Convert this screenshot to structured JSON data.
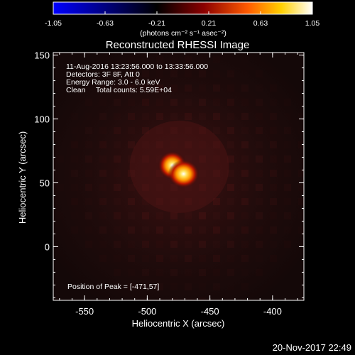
{
  "colorbar": {
    "ticks": [
      "-1.05",
      "-0.63",
      "-0.21",
      "0.21",
      "0.63",
      "1.05"
    ],
    "unit_label": "(photons cm⁻² s⁻¹ asec⁻²)",
    "gradient": [
      "#0000ff",
      "#000000",
      "#8a0000",
      "#ff5a00",
      "#ffd000",
      "#ffffff"
    ]
  },
  "plot": {
    "title": "Reconstructed RHESSI Image",
    "xlabel": "Heliocentric X (arcsec)",
    "ylabel": "Heliocentric Y (arcsec)",
    "xticks": [
      "-550",
      "-500",
      "-450",
      "-400"
    ],
    "yticks": [
      "150",
      "100",
      "50",
      "0"
    ],
    "xlim": [
      -575,
      -375
    ],
    "ylim": [
      -42,
      152
    ]
  },
  "info": {
    "line1": "11-Aug-2016 13:23:56.000 to 13:33:56.000",
    "line2": "Detectors: 3F 8F, Att 0",
    "line3": "Energy Range: 3.0 - 6.0 keV",
    "line4": "Clean     Total counts: 5.59E+04",
    "peak": "Position of Peak = [-471,57]"
  },
  "source": {
    "peak_x": -471,
    "peak_y": 57
  },
  "timestamp": "20-Nov-2017 22:49"
}
